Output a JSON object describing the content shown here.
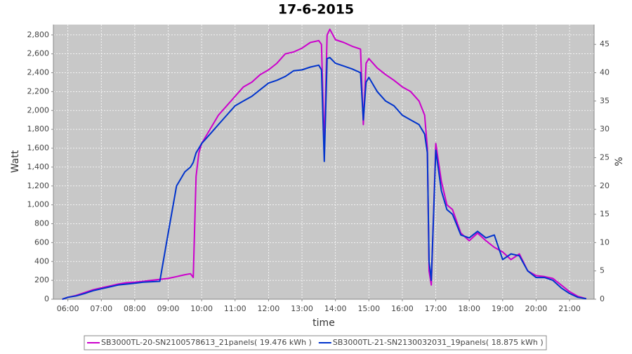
{
  "chart_data": {
    "type": "line",
    "title": "17-6-2015",
    "x_label": "time",
    "y_label": "Watt",
    "y2_label": "%",
    "x": [
      "05:50",
      "06:00",
      "06:15",
      "06:30",
      "06:45",
      "07:00",
      "07:15",
      "07:30",
      "07:45",
      "08:00",
      "08:15",
      "08:30",
      "08:45",
      "09:00",
      "09:15",
      "09:30",
      "09:40",
      "09:45",
      "09:50",
      "09:55",
      "10:00",
      "10:15",
      "10:30",
      "10:45",
      "11:00",
      "11:15",
      "11:30",
      "11:45",
      "12:00",
      "12:15",
      "12:30",
      "12:45",
      "13:00",
      "13:15",
      "13:30",
      "13:35",
      "13:40",
      "13:45",
      "13:50",
      "14:00",
      "14:15",
      "14:30",
      "14:45",
      "14:50",
      "14:55",
      "15:00",
      "15:15",
      "15:30",
      "15:45",
      "16:00",
      "16:15",
      "16:30",
      "16:40",
      "16:45",
      "16:48",
      "16:52",
      "17:00",
      "17:10",
      "17:20",
      "17:30",
      "17:45",
      "18:00",
      "18:15",
      "18:30",
      "18:45",
      "19:00",
      "19:15",
      "19:30",
      "19:45",
      "20:00",
      "20:15",
      "20:30",
      "20:45",
      "21:00",
      "21:15",
      "21:30"
    ],
    "xlim": [
      "05:34",
      "21:44"
    ],
    "xticks": [
      "06:00",
      "07:00",
      "08:00",
      "09:00",
      "10:00",
      "11:00",
      "12:00",
      "13:00",
      "14:00",
      "15:00",
      "16:00",
      "17:00",
      "18:00",
      "19:00",
      "20:00",
      "21:00"
    ],
    "ylim": [
      0,
      2910
    ],
    "yticks": [
      0,
      200,
      400,
      600,
      800,
      {
        "value": 1000,
        "label": "1,000"
      },
      {
        "value": 1200,
        "label": "1,200"
      },
      {
        "value": 1400,
        "label": "1,400"
      },
      {
        "value": 1600,
        "label": "1,600"
      },
      {
        "value": 1800,
        "label": "1,800"
      },
      {
        "value": 2000,
        "label": "2,000"
      },
      {
        "value": 2200,
        "label": "2,200"
      },
      {
        "value": 2400,
        "label": "2,400"
      },
      {
        "value": 2600,
        "label": "2,600"
      },
      {
        "value": 2800,
        "label": "2,800"
      }
    ],
    "y2lim": [
      0,
      48.5
    ],
    "y2ticks": [
      0,
      5,
      10,
      15,
      20,
      25,
      30,
      35,
      40,
      45
    ],
    "grid": true,
    "legend": "bottom",
    "series": [
      {
        "name": "SB3000TL-20-SN2100578613_21panels( 19.476 kWh )",
        "color": "#cc00cc",
        "values": [
          0,
          20,
          40,
          70,
          100,
          120,
          140,
          160,
          175,
          180,
          190,
          200,
          210,
          220,
          240,
          260,
          270,
          230,
          1300,
          1550,
          1650,
          1800,
          1950,
          2050,
          2150,
          2250,
          2300,
          2380,
          2430,
          2500,
          2600,
          2620,
          2660,
          2720,
          2740,
          2700,
          1600,
          2800,
          2860,
          2750,
          2720,
          2680,
          2650,
          1850,
          2500,
          2550,
          2450,
          2380,
          2320,
          2250,
          2200,
          2100,
          1950,
          1600,
          300,
          150,
          1650,
          1250,
          1000,
          950,
          700,
          620,
          700,
          620,
          550,
          500,
          420,
          480,
          300,
          250,
          240,
          220,
          150,
          80,
          30,
          5
        ]
      },
      {
        "name": "SB3000TL-21-SN2130032031_19panels( 18.875 kWh )",
        "color": "#0033cc",
        "values": [
          0,
          20,
          35,
          60,
          90,
          110,
          130,
          150,
          160,
          170,
          180,
          185,
          190,
          700,
          1200,
          1350,
          1400,
          1450,
          1550,
          1600,
          1650,
          1750,
          1850,
          1950,
          2050,
          2100,
          2150,
          2220,
          2290,
          2320,
          2360,
          2420,
          2430,
          2460,
          2480,
          2430,
          1460,
          2550,
          2560,
          2500,
          2470,
          2440,
          2400,
          1900,
          2300,
          2350,
          2200,
          2100,
          2050,
          1950,
          1900,
          1850,
          1750,
          1550,
          400,
          200,
          1580,
          1150,
          950,
          900,
          680,
          650,
          720,
          650,
          680,
          420,
          480,
          460,
          300,
          230,
          230,
          200,
          120,
          60,
          20,
          5
        ]
      }
    ]
  }
}
